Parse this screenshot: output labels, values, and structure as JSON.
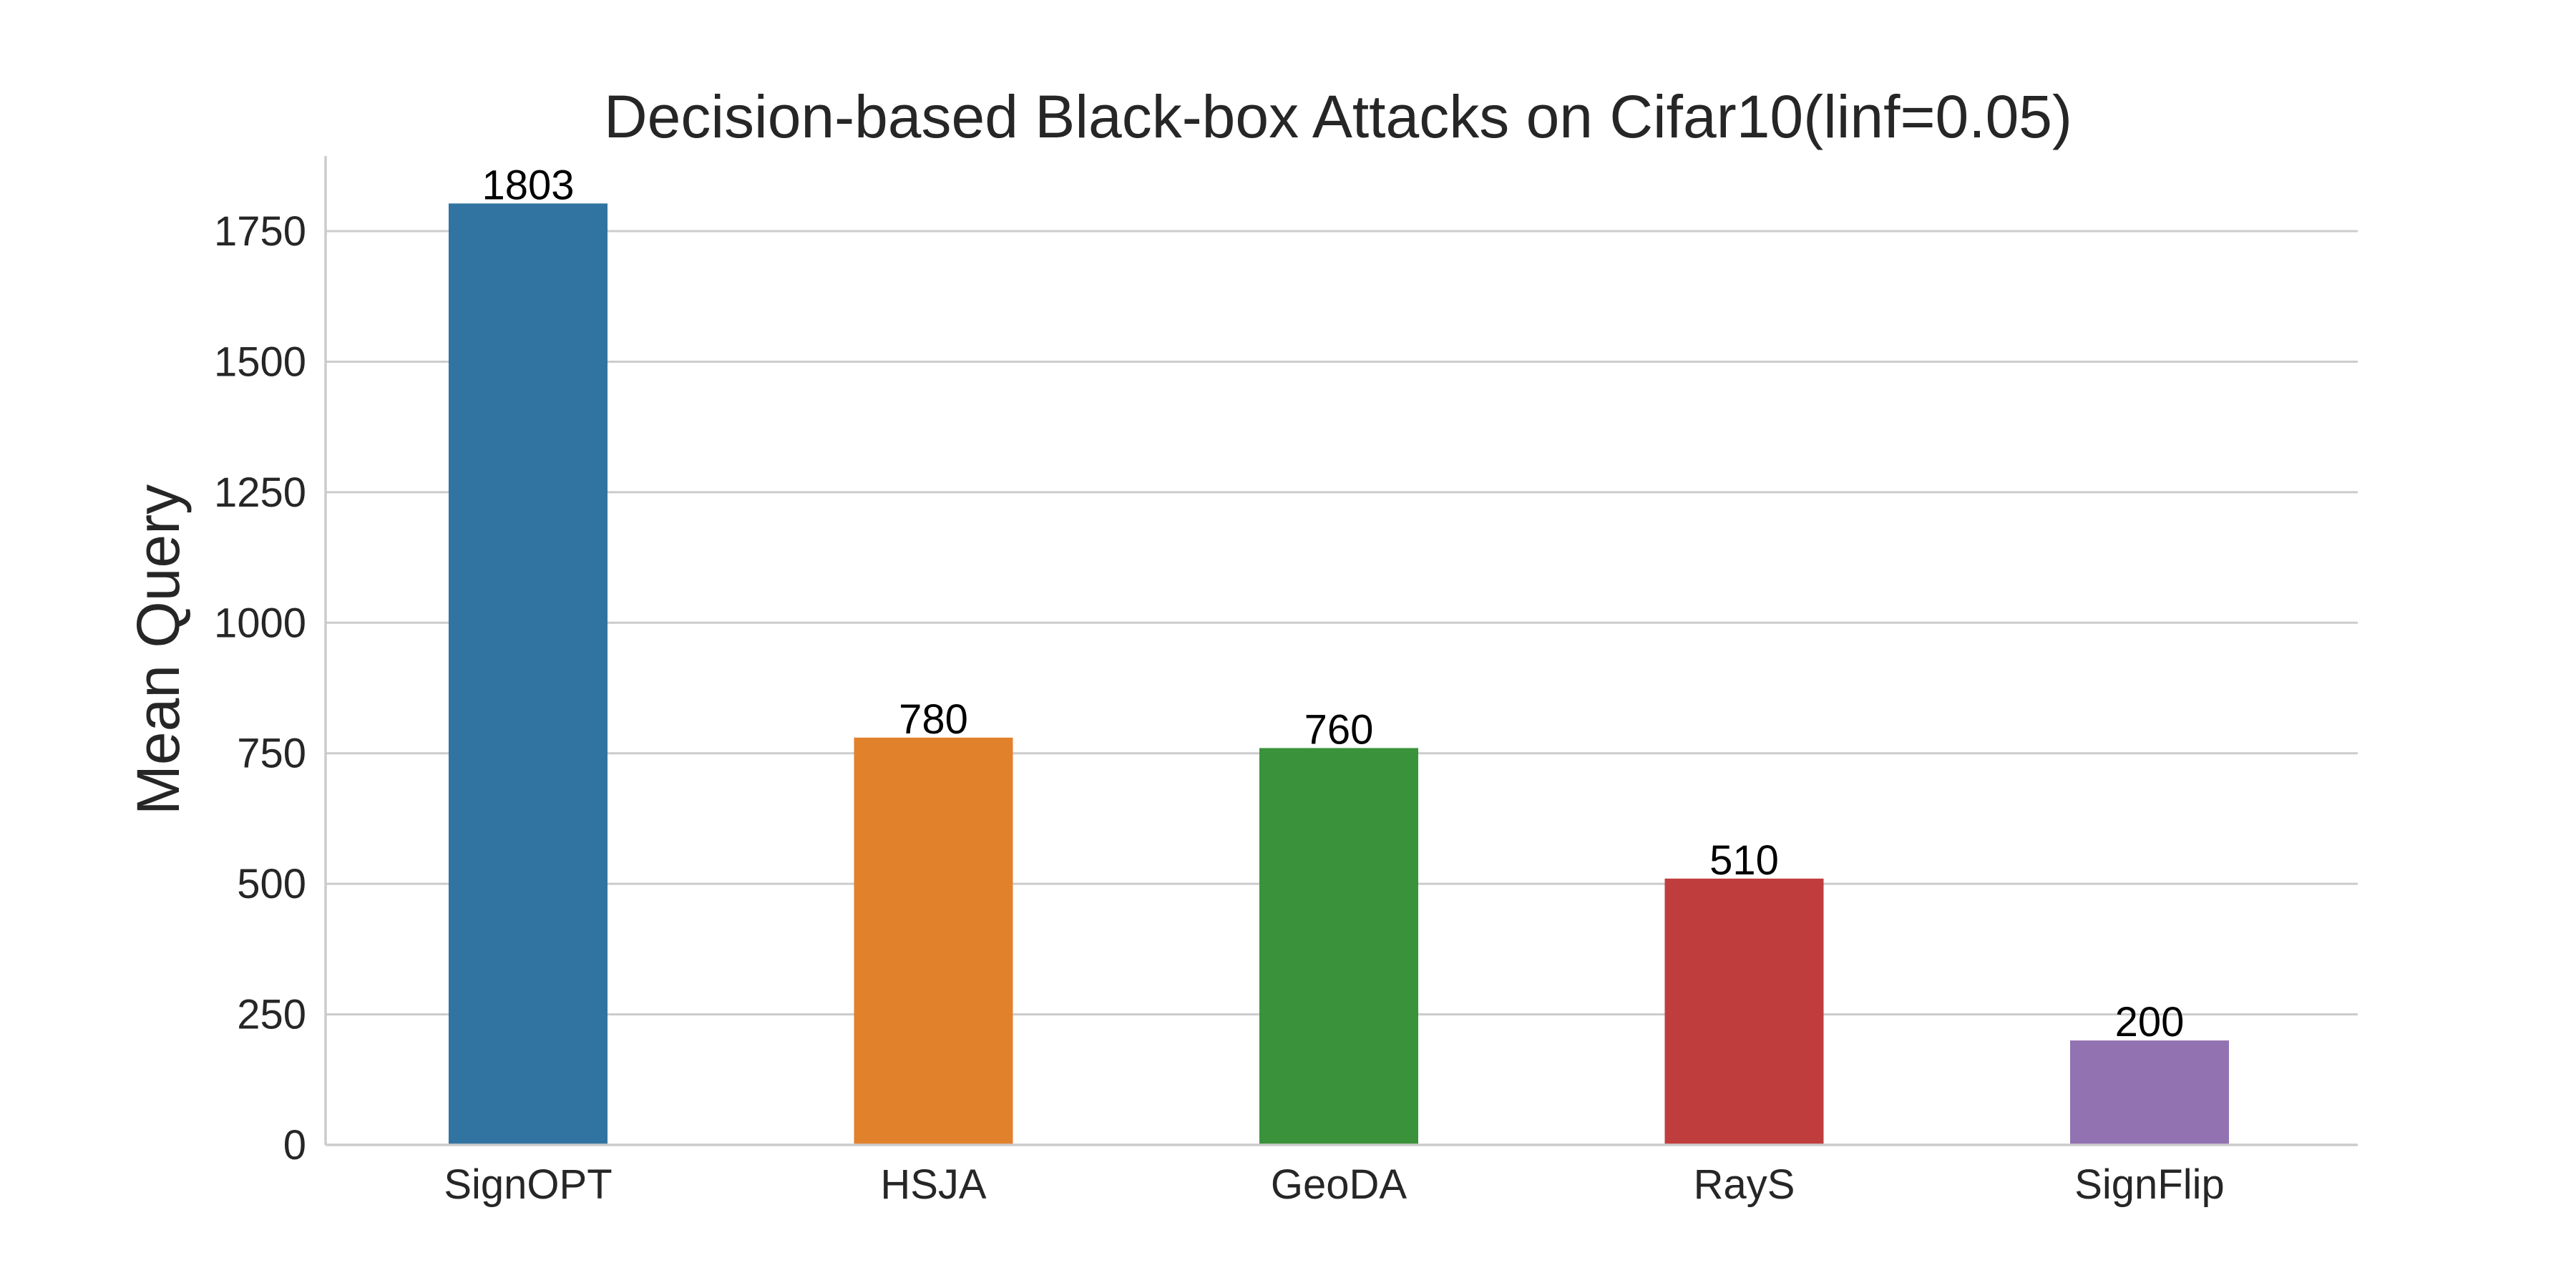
{
  "chart_data": {
    "type": "bar",
    "title": "Decision-based Black-box Attacks on Cifar10(linf=0.05)",
    "xlabel": "",
    "ylabel": "Mean Query",
    "categories": [
      "SignOPT",
      "HSJA",
      "GeoDA",
      "RayS",
      "SignFlip"
    ],
    "values": [
      1803,
      780,
      760,
      510,
      200
    ],
    "data_labels": [
      "1803",
      "780",
      "760",
      "510",
      "200"
    ],
    "colors": [
      "#3274a1",
      "#e1812c",
      "#3a923a",
      "#c03d3e",
      "#9372b2"
    ],
    "ylim": [
      0,
      1900
    ],
    "yticks": [
      0,
      250,
      500,
      750,
      1000,
      1250,
      1500,
      1750
    ],
    "grid": true,
    "legend": "none"
  }
}
